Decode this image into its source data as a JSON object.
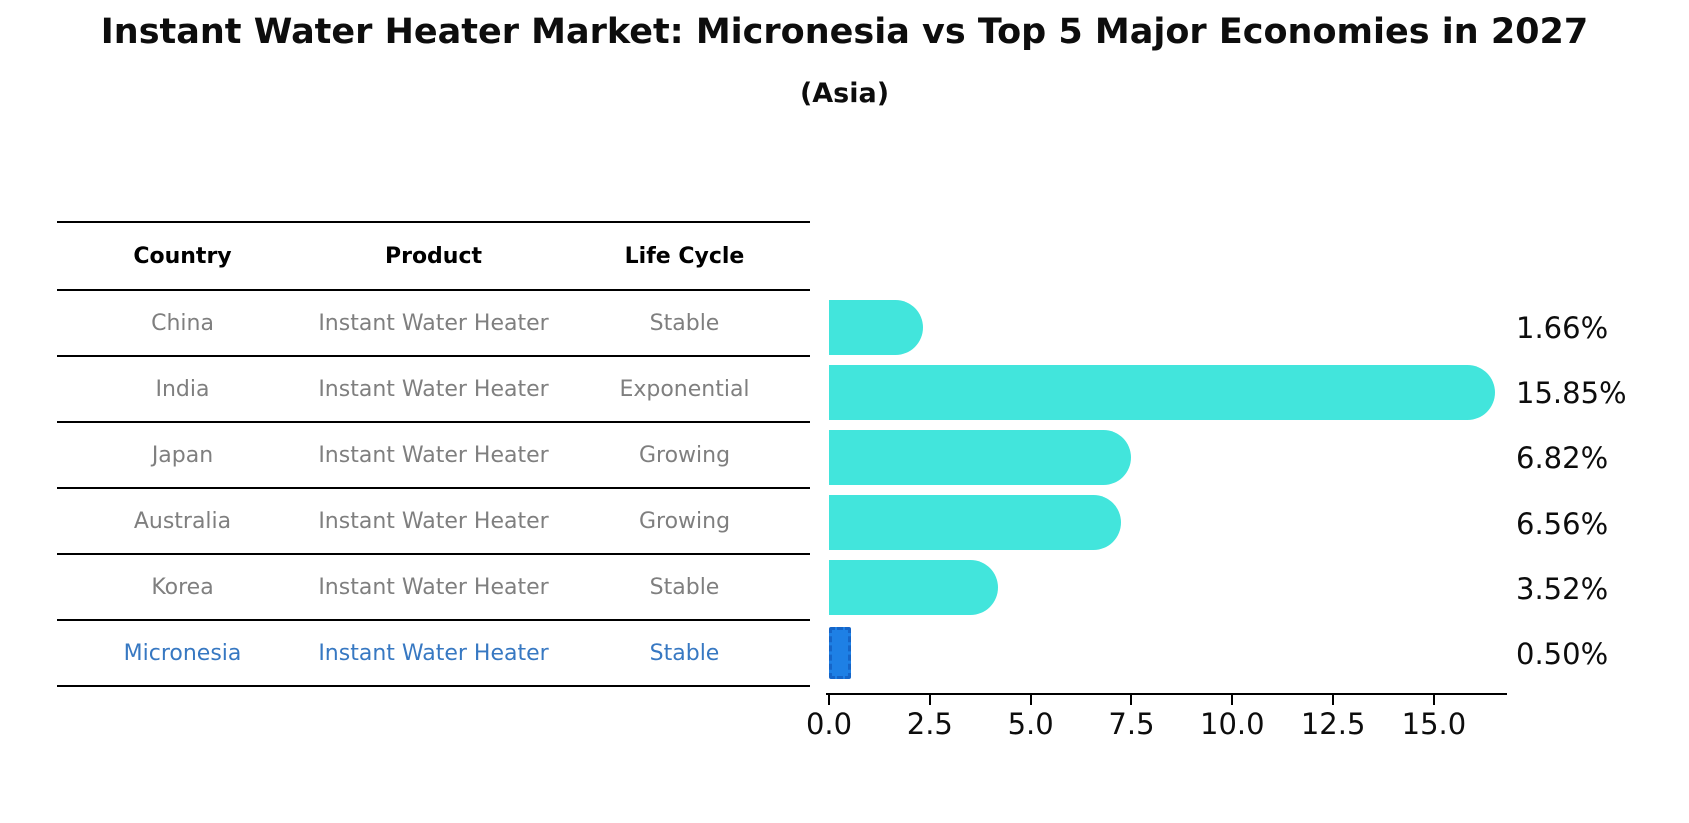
{
  "title": "Instant Water Heater Market: Micronesia vs Top 5 Major Economies in 2027",
  "subtitle": "(Asia)",
  "table": {
    "headers": [
      "Country",
      "Product",
      "Life Cycle"
    ],
    "rows": [
      {
        "country": "China",
        "product": "Instant Water Heater",
        "life_cycle": "Stable",
        "highlighted": false
      },
      {
        "country": "India",
        "product": "Instant Water Heater",
        "life_cycle": "Exponential",
        "highlighted": false
      },
      {
        "country": "Japan",
        "product": "Instant Water Heater",
        "life_cycle": "Growing",
        "highlighted": false
      },
      {
        "country": "Australia",
        "product": "Instant Water Heater",
        "life_cycle": "Growing",
        "highlighted": false
      },
      {
        "country": "Korea",
        "product": "Instant Water Heater",
        "life_cycle": "Stable",
        "highlighted": false
      },
      {
        "country": "Micronesia",
        "product": "Instant Water Heater",
        "life_cycle": "Stable",
        "highlighted": true
      }
    ]
  },
  "chart_data": {
    "type": "bar",
    "orientation": "horizontal",
    "title": "Instant Water Heater Market: Micronesia vs Top 5 Major Economies in 2027",
    "subtitle": "(Asia)",
    "categories": [
      "China",
      "India",
      "Japan",
      "Australia",
      "Korea",
      "Micronesia"
    ],
    "values": [
      1.66,
      15.85,
      6.82,
      6.56,
      3.52,
      0.5
    ],
    "value_labels": [
      "1.66%",
      "15.85%",
      "6.82%",
      "6.56%",
      "3.52%",
      "0.50%"
    ],
    "x_ticks": [
      0.0,
      2.5,
      5.0,
      7.5,
      10.0,
      12.5,
      15.0
    ],
    "x_tick_labels": [
      "0.0",
      "2.5",
      "5.0",
      "7.5",
      "10.0",
      "12.5",
      "15.0"
    ],
    "xlim": [
      0,
      16.6
    ],
    "grid": false,
    "legend": false,
    "highlight_index": 5
  },
  "colors": {
    "background": "#FFFFFF",
    "bar": "#42E5DC",
    "highlight_bar": "#1E80E5",
    "table_text": "#7F7F7F",
    "highlight_text": "#3778C2",
    "text": "#0D0D0D"
  }
}
